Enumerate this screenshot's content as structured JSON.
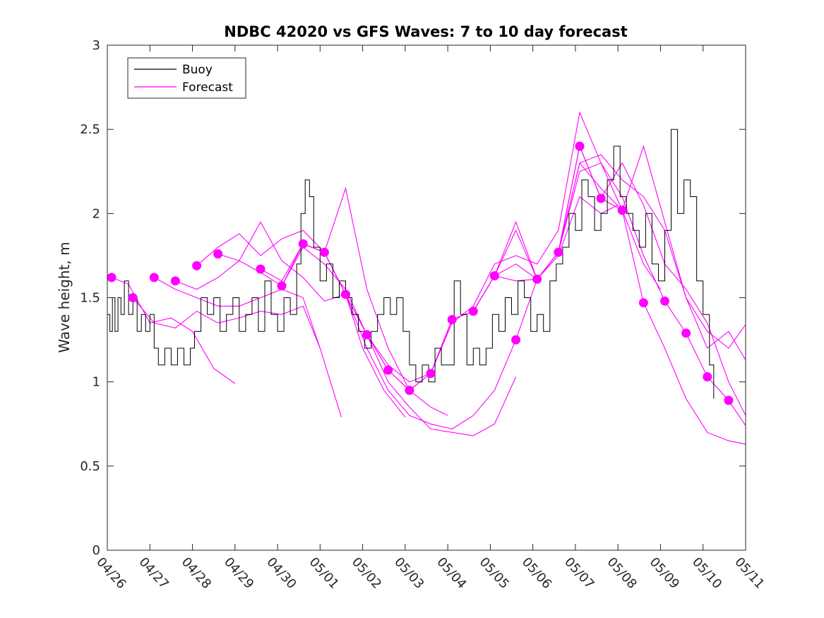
{
  "chart_data": {
    "type": "line",
    "title": "NDBC 42020 vs GFS Waves: 7 to 10 day forecast",
    "xlabel": "",
    "ylabel": "Wave height, m",
    "ylim": [
      0,
      3
    ],
    "yticks": [
      "0",
      "0.5",
      "1",
      "1.5",
      "2",
      "2.5",
      "3"
    ],
    "xlim": [
      "04/26",
      "05/11"
    ],
    "xticks": [
      "04/26",
      "04/27",
      "04/28",
      "04/29",
      "04/30",
      "05/01",
      "05/02",
      "05/03",
      "05/04",
      "05/05",
      "05/06",
      "05/07",
      "05/08",
      "05/09",
      "05/10",
      "05/11"
    ],
    "grid": false,
    "legend": {
      "position": "top-left",
      "entries": [
        {
          "name": "Buoy",
          "color": "#000000"
        },
        {
          "name": "Forecast",
          "color": "#ff00ff"
        }
      ]
    },
    "colors": {
      "buoy": "#000000",
      "forecast": "#ff00ff"
    },
    "series": [
      {
        "name": "Buoy",
        "x_days": [
          0,
          0.06,
          0.12,
          0.18,
          0.25,
          0.32,
          0.4,
          0.5,
          0.6,
          0.7,
          0.8,
          0.9,
          1.0,
          1.1,
          1.2,
          1.35,
          1.5,
          1.65,
          1.8,
          1.95,
          2.05,
          2.2,
          2.35,
          2.5,
          2.65,
          2.8,
          2.95,
          3.1,
          3.25,
          3.4,
          3.55,
          3.7,
          3.85,
          4.0,
          4.15,
          4.3,
          4.45,
          4.55,
          4.65,
          4.75,
          4.85,
          5.0,
          5.15,
          5.3,
          5.45,
          5.6,
          5.75,
          5.9,
          6.05,
          6.2,
          6.35,
          6.5,
          6.65,
          6.8,
          6.95,
          7.1,
          7.25,
          7.4,
          7.55,
          7.7,
          7.85,
          8.0,
          8.15,
          8.3,
          8.45,
          8.6,
          8.75,
          8.9,
          9.05,
          9.2,
          9.35,
          9.5,
          9.65,
          9.8,
          9.95,
          10.1,
          10.25,
          10.4,
          10.55,
          10.7,
          10.85,
          11.0,
          11.15,
          11.3,
          11.45,
          11.6,
          11.75,
          11.9,
          12.05,
          12.2,
          12.35,
          12.5,
          12.65,
          12.8,
          12.95,
          13.1,
          13.25,
          13.4,
          13.55,
          13.7,
          13.85,
          14.0,
          14.15,
          14.25
        ],
        "y": [
          1.4,
          1.3,
          1.5,
          1.3,
          1.5,
          1.4,
          1.6,
          1.4,
          1.5,
          1.3,
          1.4,
          1.3,
          1.4,
          1.2,
          1.1,
          1.2,
          1.1,
          1.2,
          1.1,
          1.2,
          1.3,
          1.5,
          1.4,
          1.5,
          1.3,
          1.4,
          1.5,
          1.3,
          1.4,
          1.5,
          1.3,
          1.6,
          1.4,
          1.3,
          1.5,
          1.4,
          1.7,
          2.0,
          2.2,
          2.1,
          1.8,
          1.6,
          1.7,
          1.5,
          1.6,
          1.5,
          1.4,
          1.3,
          1.2,
          1.3,
          1.4,
          1.5,
          1.4,
          1.5,
          1.3,
          1.1,
          1.0,
          1.1,
          1.0,
          1.2,
          1.1,
          1.1,
          1.6,
          1.4,
          1.1,
          1.2,
          1.1,
          1.2,
          1.4,
          1.3,
          1.5,
          1.4,
          1.6,
          1.5,
          1.3,
          1.4,
          1.3,
          1.6,
          1.7,
          1.8,
          2.0,
          1.9,
          2.2,
          2.1,
          1.9,
          2.0,
          2.2,
          2.4,
          2.1,
          2.0,
          1.9,
          1.8,
          2.0,
          1.7,
          1.6,
          1.9,
          2.5,
          2.0,
          2.2,
          2.1,
          1.6,
          1.4,
          1.1,
          0.9
        ]
      },
      {
        "name": "Forecast",
        "markers": {
          "x_days": [
            0.1,
            0.6,
            1.1,
            1.6,
            2.1,
            2.6,
            3.6,
            4.1,
            4.6,
            5.1,
            5.6,
            6.1,
            6.6,
            7.1,
            7.6,
            8.1,
            8.6,
            9.1,
            9.6,
            10.1,
            10.6,
            11.1,
            11.6,
            12.1,
            12.6,
            13.1,
            13.6,
            14.1,
            14.6
          ],
          "y": [
            1.62,
            1.5,
            1.62,
            1.6,
            1.69,
            1.76,
            1.67,
            1.57,
            1.82,
            1.77,
            1.52,
            1.28,
            1.07,
            0.95,
            1.05,
            1.37,
            1.42,
            1.63,
            1.25,
            1.61,
            1.77,
            2.4,
            2.09,
            2.02,
            1.47,
            1.48,
            1.29,
            1.03,
            0.89
          ]
        },
        "runs": [
          {
            "x_days": [
              0.1,
              0.5,
              1.0,
              1.5,
              2.0,
              2.5,
              3.0
            ],
            "y": [
              1.62,
              1.58,
              1.35,
              1.38,
              1.3,
              1.08,
              0.99
            ]
          },
          {
            "x_days": [
              0.6,
              1.1,
              1.6,
              2.1,
              2.6,
              3.1,
              3.6,
              4.1,
              4.6,
              5.0
            ],
            "y": [
              1.5,
              1.35,
              1.32,
              1.42,
              1.35,
              1.38,
              1.42,
              1.4,
              1.45,
              1.2
            ]
          },
          {
            "x_days": [
              1.1,
              1.6,
              2.1,
              2.6,
              3.1,
              3.6,
              4.1,
              4.6,
              5.0,
              5.5
            ],
            "y": [
              1.62,
              1.55,
              1.5,
              1.45,
              1.45,
              1.5,
              1.55,
              1.5,
              1.2,
              0.79
            ]
          },
          {
            "x_days": [
              1.6,
              2.1,
              2.6,
              3.1,
              3.6,
              4.1,
              4.6,
              5.1,
              5.6,
              6.0,
              6.5,
              7.0
            ],
            "y": [
              1.6,
              1.55,
              1.62,
              1.72,
              1.95,
              1.72,
              1.62,
              1.48,
              1.52,
              1.2,
              0.95,
              0.79
            ]
          },
          {
            "x_days": [
              2.1,
              2.6,
              3.1,
              3.6,
              4.1,
              4.6,
              5.1,
              5.6,
              6.1,
              6.6,
              7.1,
              7.6,
              8.0
            ],
            "y": [
              1.69,
              1.8,
              1.88,
              1.75,
              1.85,
              1.9,
              1.77,
              2.15,
              1.55,
              1.2,
              0.95,
              0.85,
              0.8
            ]
          },
          {
            "x_days": [
              2.6,
              3.1,
              3.6,
              4.1,
              4.6,
              5.1,
              5.6,
              6.1,
              6.6,
              7.1,
              7.6,
              8.1,
              8.6,
              9.1,
              9.6
            ],
            "y": [
              1.76,
              1.72,
              1.65,
              1.57,
              1.8,
              1.7,
              1.55,
              1.28,
              1.0,
              0.85,
              0.72,
              0.7,
              0.68,
              0.75,
              1.03
            ]
          },
          {
            "x_days": [
              3.6,
              4.1,
              4.6,
              5.1,
              5.6,
              6.1,
              6.6,
              7.1,
              7.6,
              8.1,
              8.6,
              9.1,
              9.6,
              10.1,
              10.6,
              11.1,
              11.6,
              12.0
            ],
            "y": [
              1.67,
              1.6,
              1.82,
              1.77,
              1.52,
              1.2,
              0.95,
              0.8,
              0.75,
              0.72,
              0.8,
              0.95,
              1.25,
              1.61,
              1.75,
              2.1,
              2.0,
              2.05
            ]
          },
          {
            "x_days": [
              4.1,
              4.6,
              5.1,
              5.6,
              6.1,
              6.6,
              7.1,
              7.6,
              8.1,
              8.6,
              9.1,
              9.6,
              10.1,
              10.6,
              11.1,
              11.6,
              12.1,
              12.6,
              13.0
            ],
            "y": [
              1.57,
              1.82,
              1.77,
              1.52,
              1.28,
              1.07,
              0.95,
              1.05,
              1.37,
              1.42,
              1.63,
              1.6,
              1.61,
              1.77,
              2.3,
              2.15,
              2.02,
              1.7,
              1.55
            ]
          },
          {
            "x_days": [
              4.6,
              5.1,
              5.6,
              6.1,
              6.6,
              7.1,
              7.6,
              8.1,
              8.6,
              9.1,
              9.6,
              10.1,
              10.6,
              11.1,
              11.6,
              12.1,
              12.6,
              13.1,
              13.6,
              14.1,
              14.6,
              15.0
            ],
            "y": [
              1.82,
              1.77,
              1.52,
              1.28,
              1.07,
              0.95,
              1.05,
              1.37,
              1.42,
              1.63,
              1.95,
              1.61,
              1.77,
              2.4,
              2.09,
              2.02,
              1.47,
              1.2,
              0.9,
              0.7,
              0.65,
              0.63
            ]
          },
          {
            "x_days": [
              6.1,
              6.6,
              7.1,
              7.6,
              8.1,
              8.6,
              9.1,
              9.6,
              10.1,
              10.6,
              11.1,
              11.6,
              12.1,
              12.6,
              13.1,
              13.6,
              14.1,
              14.6,
              15.0
            ],
            "y": [
              1.28,
              1.1,
              1.0,
              1.05,
              1.35,
              1.45,
              1.7,
              1.75,
              1.7,
              1.9,
              2.6,
              2.3,
              2.1,
              1.75,
              1.48,
              1.29,
              1.03,
              0.89,
              0.74
            ]
          },
          {
            "x_days": [
              7.6,
              8.1,
              8.6,
              9.1,
              9.6,
              10.1,
              10.6,
              11.1,
              11.6,
              12.1,
              12.6,
              13.1,
              13.6,
              14.1,
              14.6,
              15.0
            ],
            "y": [
              1.05,
              1.37,
              1.42,
              1.63,
              1.7,
              1.61,
              1.77,
              2.3,
              2.35,
              2.2,
              2.1,
              1.9,
              1.5,
              1.2,
              1.3,
              1.13
            ]
          },
          {
            "x_days": [
              8.6,
              9.1,
              9.6,
              10.1,
              10.6,
              11.1,
              11.6,
              12.1,
              12.6,
              13.1,
              13.6,
              14.1,
              14.6,
              15.0
            ],
            "y": [
              1.42,
              1.63,
              1.9,
              1.61,
              1.77,
              2.25,
              2.3,
              2.02,
              2.4,
              1.95,
              1.5,
              1.3,
              1.2,
              1.34
            ]
          },
          {
            "x_days": [
              10.1,
              10.6,
              11.1,
              11.6,
              12.1,
              12.6,
              13.1,
              13.6,
              14.1,
              14.6,
              15.0
            ],
            "y": [
              1.61,
              1.77,
              2.4,
              2.09,
              2.3,
              2.05,
              1.7,
              1.55,
              1.35,
              1.0,
              0.8
            ]
          }
        ]
      }
    ]
  }
}
